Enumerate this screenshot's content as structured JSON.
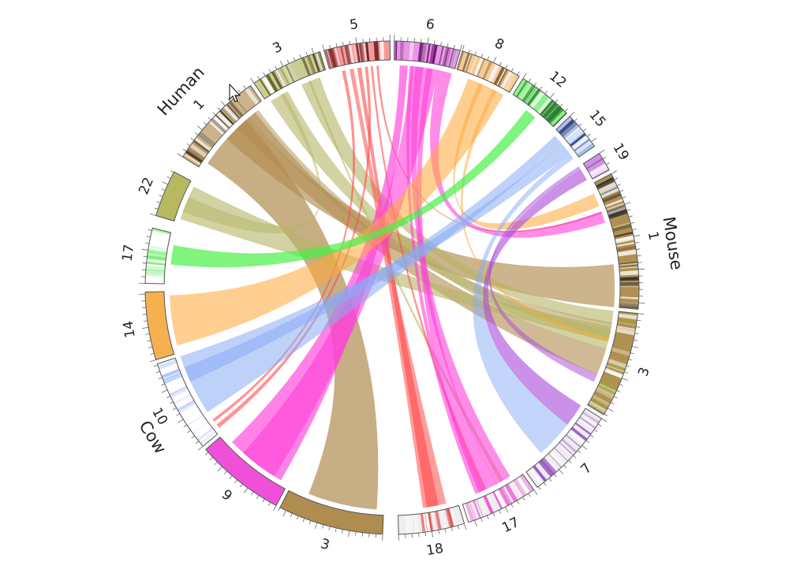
{
  "species": [
    {
      "name": "Human",
      "chromosomes": [
        {
          "id": "h22",
          "label": "22",
          "color": "#b8b860"
        },
        {
          "id": "h17",
          "label": "17",
          "color": "#ffffff",
          "accent": "#60f060"
        },
        {
          "id": "h1",
          "label": "1",
          "color": "#cbb38a",
          "accent": "#3a2a10"
        },
        {
          "id": "h3",
          "label": "3",
          "color": "#cccb94",
          "accent": "#4a4a18"
        },
        {
          "id": "h5",
          "label": "5",
          "color": "#f29a9a",
          "accent": "#5a0a0a"
        },
        {
          "id": "h6",
          "label": "6",
          "color": "#e895e8",
          "accent": "#6a106a"
        },
        {
          "id": "h8",
          "label": "8",
          "color": "#f5cc95",
          "accent": "#5a3a10"
        },
        {
          "id": "h12",
          "label": "12",
          "color": "#8cf08c",
          "accent": "#105a10"
        },
        {
          "id": "h15",
          "label": "15",
          "color": "#a8c0ec",
          "accent": "#2a3a6a"
        },
        {
          "id": "h19",
          "label": "19",
          "color": "#cc94e0",
          "accent": "#6a1a8a"
        }
      ]
    },
    {
      "name": "Mouse",
      "chromosomes": [
        {
          "id": "m1",
          "label": "1",
          "color": "#b09050",
          "accent": "#303030"
        },
        {
          "id": "m3",
          "label": "3",
          "color": "#b09050",
          "accent": "#a0a040"
        },
        {
          "id": "m7",
          "label": "7",
          "color": "#eeeeee",
          "accent": "#9040c0"
        },
        {
          "id": "m17",
          "label": "17",
          "color": "#eeeeee",
          "accent": "#f040d0"
        },
        {
          "id": "m18",
          "label": "18",
          "color": "#eeeeee",
          "accent": "#e03030"
        }
      ]
    },
    {
      "name": "Cow",
      "chromosomes": [
        {
          "id": "c3",
          "label": "3",
          "color": "#b08c50"
        },
        {
          "id": "c9",
          "label": "9",
          "color": "#f050d8"
        },
        {
          "id": "c10",
          "label": "10",
          "color": "#ffffff",
          "accent": "#90b0f8"
        },
        {
          "id": "c14",
          "label": "14",
          "color": "#f5b050"
        }
      ]
    }
  ],
  "link_colors": {
    "brown": "#b08c50",
    "olive": "#b4b464",
    "red": "#ff4a4a",
    "magenta": "#ff40d8",
    "orange": "#ffa838",
    "green": "#48f048",
    "blue": "#88acf4",
    "purple": "#a848d8"
  }
}
